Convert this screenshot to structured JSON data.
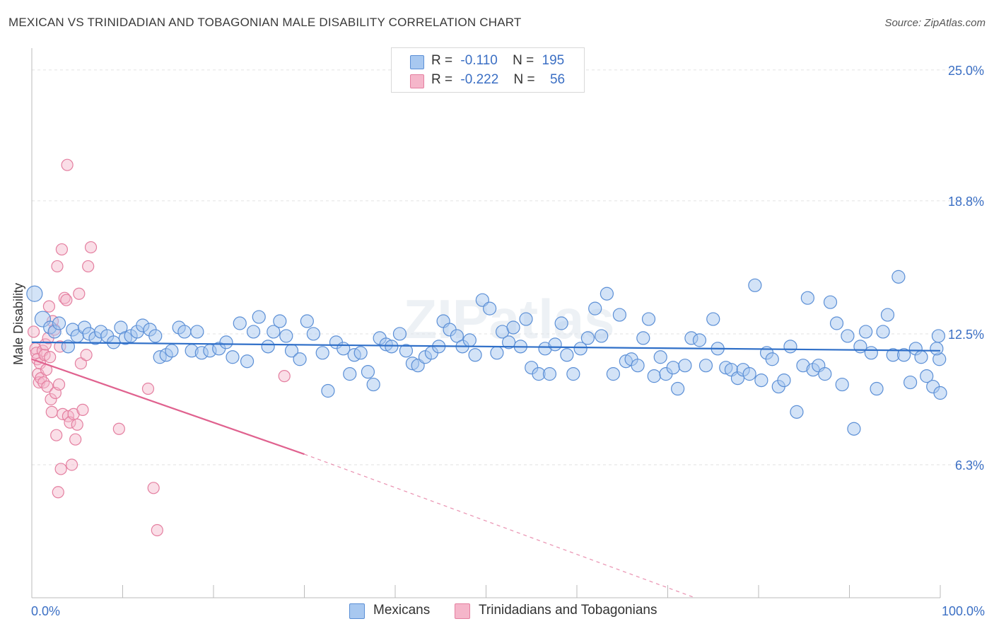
{
  "title": "MEXICAN VS TRINIDADIAN AND TOBAGONIAN MALE DISABILITY CORRELATION CHART",
  "source": "Source: ZipAtlas.com",
  "watermark": "ZIPatlas",
  "colors": {
    "blue_fill": "#a8c8f0",
    "blue_stroke": "#5b8fd6",
    "blue_line": "#2f6fc8",
    "pink_fill": "#f5b6ca",
    "pink_stroke": "#e47fa0",
    "pink_line": "#e0628f",
    "axis_label": "#3b6fc4",
    "grid": "#e2e2e2"
  },
  "legend": {
    "rows": [
      {
        "r_label": "R =",
        "r_value": "-0.110",
        "n_label": "N =",
        "n_value": "195"
      },
      {
        "r_label": "R =",
        "r_value": "-0.222",
        "n_label": "N =",
        "n_value": "56"
      }
    ]
  },
  "bottom_legend": [
    "Mexicans",
    "Trinidadians and Tobagonians"
  ],
  "chart_data": {
    "type": "scatter",
    "title": "MEXICAN VS TRINIDADIAN AND TOBAGONIAN MALE DISABILITY CORRELATION CHART",
    "ylabel": "Male Disability",
    "xlim": [
      0,
      100
    ],
    "ylim": [
      0,
      25.8
    ],
    "x_tick_labels": [
      "0.0%",
      "100.0%"
    ],
    "y_ticks": [
      6.3,
      12.5,
      18.8,
      25.0
    ],
    "y_tick_labels": [
      "6.3%",
      "12.5%",
      "18.8%",
      "25.0%"
    ],
    "grid": true,
    "legend_position": "top-center",
    "series": [
      {
        "name": "Mexicans",
        "trend": {
          "x": [
            0,
            100
          ],
          "y": [
            12.1,
            11.7
          ]
        },
        "points": [
          [
            0.3,
            14.4
          ],
          [
            1.2,
            13.2
          ],
          [
            2.0,
            12.8
          ],
          [
            2.5,
            12.6
          ],
          [
            3.0,
            13.0
          ],
          [
            4.0,
            11.9
          ],
          [
            4.5,
            12.7
          ],
          [
            5.0,
            12.4
          ],
          [
            5.8,
            12.8
          ],
          [
            6.3,
            12.5
          ],
          [
            7.0,
            12.3
          ],
          [
            7.6,
            12.6
          ],
          [
            8.3,
            12.4
          ],
          [
            9.0,
            12.1
          ],
          [
            9.8,
            12.8
          ],
          [
            10.3,
            12.3
          ],
          [
            10.9,
            12.4
          ],
          [
            11.6,
            12.6
          ],
          [
            12.2,
            12.9
          ],
          [
            13.0,
            12.7
          ],
          [
            13.6,
            12.4
          ],
          [
            14.1,
            11.4
          ],
          [
            14.8,
            11.5
          ],
          [
            15.4,
            11.7
          ],
          [
            16.2,
            12.8
          ],
          [
            16.8,
            12.6
          ],
          [
            17.6,
            11.7
          ],
          [
            18.2,
            12.6
          ],
          [
            18.7,
            11.6
          ],
          [
            19.6,
            11.7
          ],
          [
            20.6,
            11.8
          ],
          [
            21.4,
            12.1
          ],
          [
            22.1,
            11.4
          ],
          [
            22.9,
            13.0
          ],
          [
            23.7,
            11.2
          ],
          [
            24.4,
            12.6
          ],
          [
            25.0,
            13.3
          ],
          [
            26.0,
            11.9
          ],
          [
            26.6,
            12.6
          ],
          [
            27.3,
            13.1
          ],
          [
            28.0,
            12.4
          ],
          [
            28.6,
            11.7
          ],
          [
            29.5,
            11.3
          ],
          [
            30.3,
            13.1
          ],
          [
            31.0,
            12.5
          ],
          [
            32.0,
            11.6
          ],
          [
            32.6,
            9.8
          ],
          [
            33.5,
            12.1
          ],
          [
            34.3,
            11.8
          ],
          [
            35.0,
            10.6
          ],
          [
            35.5,
            11.5
          ],
          [
            36.2,
            11.6
          ],
          [
            37.0,
            10.7
          ],
          [
            37.6,
            10.1
          ],
          [
            38.3,
            12.3
          ],
          [
            39.0,
            12.0
          ],
          [
            39.6,
            11.9
          ],
          [
            40.5,
            12.5
          ],
          [
            41.2,
            11.7
          ],
          [
            41.9,
            11.1
          ],
          [
            42.5,
            11.0
          ],
          [
            43.3,
            11.4
          ],
          [
            44.0,
            11.6
          ],
          [
            44.8,
            11.9
          ],
          [
            45.3,
            13.1
          ],
          [
            46.0,
            12.7
          ],
          [
            46.8,
            12.4
          ],
          [
            47.4,
            11.9
          ],
          [
            48.2,
            12.2
          ],
          [
            48.8,
            11.5
          ],
          [
            49.6,
            14.1
          ],
          [
            50.4,
            13.7
          ],
          [
            51.2,
            11.6
          ],
          [
            51.8,
            12.6
          ],
          [
            52.5,
            12.1
          ],
          [
            53.0,
            12.8
          ],
          [
            53.8,
            11.9
          ],
          [
            54.4,
            13.2
          ],
          [
            55.0,
            10.9
          ],
          [
            55.8,
            10.6
          ],
          [
            56.5,
            11.8
          ],
          [
            57.0,
            10.6
          ],
          [
            57.6,
            12.0
          ],
          [
            58.3,
            13.0
          ],
          [
            58.9,
            11.5
          ],
          [
            59.6,
            10.6
          ],
          [
            60.4,
            11.8
          ],
          [
            61.2,
            12.3
          ],
          [
            62.0,
            13.7
          ],
          [
            62.7,
            12.4
          ],
          [
            63.3,
            14.4
          ],
          [
            64.0,
            10.6
          ],
          [
            64.7,
            13.4
          ],
          [
            65.4,
            11.2
          ],
          [
            66.0,
            11.3
          ],
          [
            66.7,
            11.0
          ],
          [
            67.3,
            12.3
          ],
          [
            67.9,
            13.2
          ],
          [
            68.5,
            10.5
          ],
          [
            69.2,
            11.4
          ],
          [
            69.8,
            10.6
          ],
          [
            70.6,
            10.9
          ],
          [
            71.1,
            9.9
          ],
          [
            71.9,
            11.0
          ],
          [
            72.6,
            12.3
          ],
          [
            73.5,
            12.2
          ],
          [
            74.2,
            11.0
          ],
          [
            75.0,
            13.2
          ],
          [
            75.5,
            11.8
          ],
          [
            76.4,
            10.9
          ],
          [
            77.0,
            10.8
          ],
          [
            77.7,
            10.4
          ],
          [
            78.3,
            10.8
          ],
          [
            79.0,
            10.6
          ],
          [
            79.6,
            14.8
          ],
          [
            80.3,
            10.3
          ],
          [
            80.9,
            11.6
          ],
          [
            81.5,
            11.3
          ],
          [
            82.2,
            10.0
          ],
          [
            82.8,
            10.3
          ],
          [
            83.5,
            11.9
          ],
          [
            84.2,
            8.8
          ],
          [
            84.9,
            11.0
          ],
          [
            85.4,
            14.2
          ],
          [
            86.0,
            10.8
          ],
          [
            86.6,
            11.0
          ],
          [
            87.3,
            10.6
          ],
          [
            87.9,
            14.0
          ],
          [
            88.6,
            13.0
          ],
          [
            89.2,
            10.1
          ],
          [
            89.8,
            12.4
          ],
          [
            90.5,
            8.0
          ],
          [
            91.2,
            11.9
          ],
          [
            91.8,
            12.6
          ],
          [
            92.4,
            11.6
          ],
          [
            93.0,
            9.9
          ],
          [
            93.7,
            12.6
          ],
          [
            94.2,
            13.4
          ],
          [
            94.8,
            11.5
          ],
          [
            95.4,
            15.2
          ],
          [
            96.0,
            11.5
          ],
          [
            96.7,
            10.2
          ],
          [
            97.3,
            11.8
          ],
          [
            97.9,
            11.4
          ],
          [
            98.5,
            10.5
          ],
          [
            99.2,
            10.0
          ],
          [
            99.8,
            12.4
          ],
          [
            100.0,
            9.7
          ],
          [
            99.9,
            11.3
          ],
          [
            99.6,
            11.8
          ]
        ]
      },
      {
        "name": "Trinidadians and Tobagonians",
        "trend": {
          "x": [
            0,
            30
          ],
          "y": [
            11.3,
            6.8
          ]
        },
        "trend_extension": {
          "x": [
            30,
            73
          ],
          "y": [
            6.8,
            0
          ]
        },
        "points": [
          [
            0.2,
            12.6
          ],
          [
            0.4,
            11.8
          ],
          [
            0.5,
            11.6
          ],
          [
            0.6,
            11.3
          ],
          [
            0.7,
            10.6
          ],
          [
            0.8,
            10.2
          ],
          [
            0.9,
            11.1
          ],
          [
            1.0,
            10.4
          ],
          [
            1.2,
            11.7
          ],
          [
            1.3,
            10.2
          ],
          [
            1.4,
            11.5
          ],
          [
            1.5,
            12.0
          ],
          [
            1.6,
            10.8
          ],
          [
            1.7,
            10.0
          ],
          [
            1.8,
            12.3
          ],
          [
            1.9,
            13.8
          ],
          [
            2.0,
            11.4
          ],
          [
            2.1,
            9.4
          ],
          [
            2.2,
            8.8
          ],
          [
            2.3,
            13.1
          ],
          [
            2.5,
            12.7
          ],
          [
            2.6,
            9.7
          ],
          [
            2.7,
            7.7
          ],
          [
            2.8,
            15.7
          ],
          [
            3.0,
            10.1
          ],
          [
            3.1,
            11.9
          ],
          [
            3.2,
            6.1
          ],
          [
            3.3,
            16.5
          ],
          [
            3.4,
            8.7
          ],
          [
            3.6,
            14.2
          ],
          [
            3.8,
            14.1
          ],
          [
            3.9,
            20.5
          ],
          [
            4.0,
            8.6
          ],
          [
            4.2,
            8.3
          ],
          [
            4.4,
            6.3
          ],
          [
            4.6,
            8.7
          ],
          [
            4.8,
            7.5
          ],
          [
            5.0,
            8.2
          ],
          [
            5.2,
            14.4
          ],
          [
            5.4,
            11.1
          ],
          [
            5.6,
            8.9
          ],
          [
            6.0,
            11.5
          ],
          [
            6.2,
            15.7
          ],
          [
            6.5,
            16.6
          ],
          [
            9.6,
            8.0
          ],
          [
            12.8,
            9.9
          ],
          [
            13.4,
            5.2
          ],
          [
            13.8,
            3.2
          ],
          [
            27.8,
            10.5
          ],
          [
            2.9,
            5.0
          ]
        ]
      }
    ]
  }
}
